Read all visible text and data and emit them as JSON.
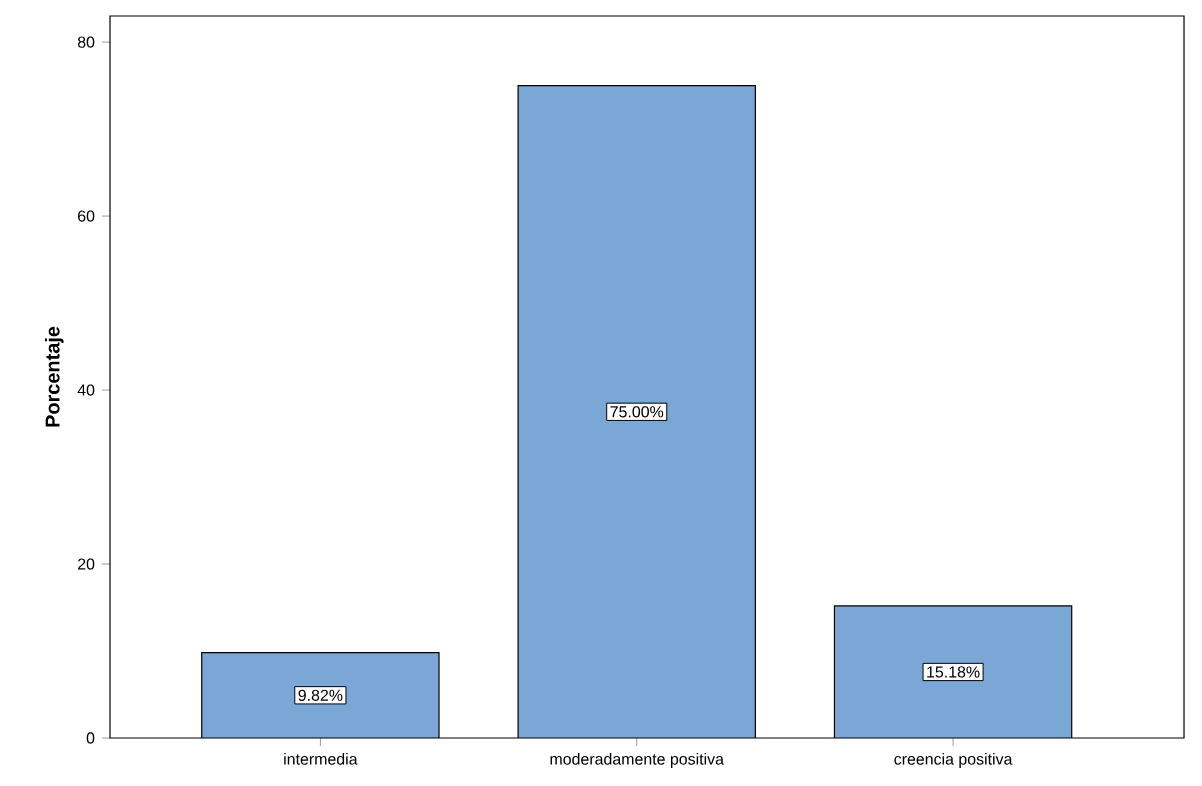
{
  "chart_data": {
    "type": "bar",
    "ylabel": "Porcentaje",
    "categories": [
      "intermedia",
      "moderadamente positiva",
      "creencia positiva"
    ],
    "values": [
      9.82,
      75.0,
      15.18
    ],
    "value_labels": [
      "9.82%",
      "75.00%",
      "15.18%"
    ],
    "color": "#7ba7d7",
    "ylim": [
      0,
      83
    ],
    "yticks": [
      0,
      20,
      40,
      60,
      80
    ],
    "grid": false
  }
}
